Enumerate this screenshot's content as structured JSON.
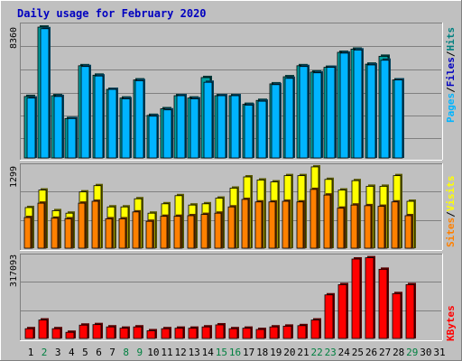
{
  "title": "Daily usage for February 2020",
  "colors": {
    "background": "#c0c0c0",
    "plot_background": "#c0c0c0",
    "grid": "#808080",
    "title": "#0000c0",
    "hits": "#00b4ff",
    "files": "#00a0ff",
    "pages": "#00b4ff",
    "visits": "#ffff00",
    "sites": "#ff8000",
    "kbytes": "#ff0000",
    "day_normal": "#000000",
    "day_weekend": "#008040"
  },
  "chart_data": [
    {
      "type": "bar",
      "title": "Daily usage for February 2020",
      "max_label": "8360",
      "ylim": [
        0,
        8360
      ],
      "legend": [
        "Pages",
        "Files",
        "Hits"
      ],
      "legend_colors": [
        "#00b4ff",
        "#0000c0",
        "#008080"
      ],
      "categories": [
        "1",
        "2",
        "3",
        "4",
        "5",
        "6",
        "7",
        "8",
        "9",
        "10",
        "11",
        "12",
        "13",
        "14",
        "15",
        "16",
        "17",
        "18",
        "19",
        "20",
        "21",
        "22",
        "23",
        "24",
        "25",
        "26",
        "27",
        "28",
        "29",
        "30",
        "31"
      ],
      "series": [
        {
          "name": "Hits",
          "values": [
            3900,
            8300,
            3950,
            2500,
            5850,
            5250,
            4350,
            3800,
            4950,
            2700,
            3120,
            3950,
            3800,
            5100,
            3950,
            3950,
            3400,
            3650,
            4700,
            5150,
            5850,
            5450,
            5750,
            6700,
            6900,
            5950,
            6450,
            4950,
            null,
            null,
            null
          ]
        },
        {
          "name": "Files",
          "values": [
            3800,
            8200,
            3900,
            2500,
            5800,
            5200,
            4350,
            3750,
            4900,
            2650,
            3050,
            3950,
            3750,
            4800,
            3950,
            3950,
            3350,
            3600,
            4650,
            5050,
            5800,
            5400,
            5750,
            6650,
            6850,
            5900,
            6200,
            4950,
            null,
            null,
            null
          ]
        }
      ]
    },
    {
      "type": "bar",
      "max_label": "1299",
      "ylim": [
        0,
        1299
      ],
      "legend": [
        "Sites",
        "Visits"
      ],
      "legend_colors": [
        "#ff8000",
        "#ffff00"
      ],
      "categories": [
        "1",
        "2",
        "3",
        "4",
        "5",
        "6",
        "7",
        "8",
        "9",
        "10",
        "11",
        "12",
        "13",
        "14",
        "15",
        "16",
        "17",
        "18",
        "19",
        "20",
        "21",
        "22",
        "23",
        "24",
        "25",
        "26",
        "27",
        "28",
        "29",
        "30",
        "31"
      ],
      "series": [
        {
          "name": "Visits",
          "values": [
            650,
            930,
            600,
            560,
            900,
            1000,
            660,
            660,
            790,
            560,
            710,
            840,
            690,
            710,
            800,
            960,
            1140,
            1090,
            1060,
            1160,
            1160,
            1300,
            1100,
            930,
            1080,
            990,
            990,
            1160,
            750,
            null,
            null
          ]
        },
        {
          "name": "Sites",
          "values": [
            490,
            720,
            480,
            470,
            720,
            750,
            470,
            470,
            580,
            430,
            510,
            510,
            520,
            540,
            560,
            660,
            780,
            740,
            740,
            750,
            740,
            940,
            850,
            640,
            690,
            680,
            670,
            740,
            520,
            null,
            null
          ]
        }
      ]
    },
    {
      "type": "bar",
      "max_label": "317093",
      "ylim": [
        0,
        317093
      ],
      "legend": [
        "KBytes"
      ],
      "legend_colors": [
        "#ff0000"
      ],
      "categories": [
        "1",
        "2",
        "3",
        "4",
        "5",
        "6",
        "7",
        "8",
        "9",
        "10",
        "11",
        "12",
        "13",
        "14",
        "15",
        "16",
        "17",
        "18",
        "19",
        "20",
        "21",
        "22",
        "23",
        "24",
        "25",
        "26",
        "27",
        "28",
        "29",
        "30",
        "31"
      ],
      "series": [
        {
          "name": "KBytes",
          "values": [
            38000,
            72000,
            38000,
            24000,
            52000,
            54000,
            45000,
            40000,
            45000,
            30000,
            38000,
            40000,
            40000,
            45000,
            53000,
            38000,
            40000,
            35000,
            45000,
            48000,
            50000,
            72000,
            170000,
            210000,
            310000,
            315000,
            270000,
            175000,
            210000,
            null,
            null
          ]
        }
      ]
    }
  ],
  "days": [
    {
      "label": "1",
      "weekend": false
    },
    {
      "label": "2",
      "weekend": true
    },
    {
      "label": "3",
      "weekend": false
    },
    {
      "label": "4",
      "weekend": false
    },
    {
      "label": "5",
      "weekend": false
    },
    {
      "label": "6",
      "weekend": false
    },
    {
      "label": "7",
      "weekend": false
    },
    {
      "label": "8",
      "weekend": true
    },
    {
      "label": "9",
      "weekend": true
    },
    {
      "label": "10",
      "weekend": false
    },
    {
      "label": "11",
      "weekend": false
    },
    {
      "label": "12",
      "weekend": false
    },
    {
      "label": "13",
      "weekend": false
    },
    {
      "label": "14",
      "weekend": false
    },
    {
      "label": "15",
      "weekend": true
    },
    {
      "label": "16",
      "weekend": true
    },
    {
      "label": "17",
      "weekend": false
    },
    {
      "label": "18",
      "weekend": false
    },
    {
      "label": "19",
      "weekend": false
    },
    {
      "label": "20",
      "weekend": false
    },
    {
      "label": "21",
      "weekend": false
    },
    {
      "label": "22",
      "weekend": true
    },
    {
      "label": "23",
      "weekend": true
    },
    {
      "label": "24",
      "weekend": false
    },
    {
      "label": "25",
      "weekend": false
    },
    {
      "label": "26",
      "weekend": false
    },
    {
      "label": "27",
      "weekend": false
    },
    {
      "label": "28",
      "weekend": false
    },
    {
      "label": "29",
      "weekend": true
    },
    {
      "label": "30",
      "weekend": false
    },
    {
      "label": "31",
      "weekend": false
    }
  ]
}
